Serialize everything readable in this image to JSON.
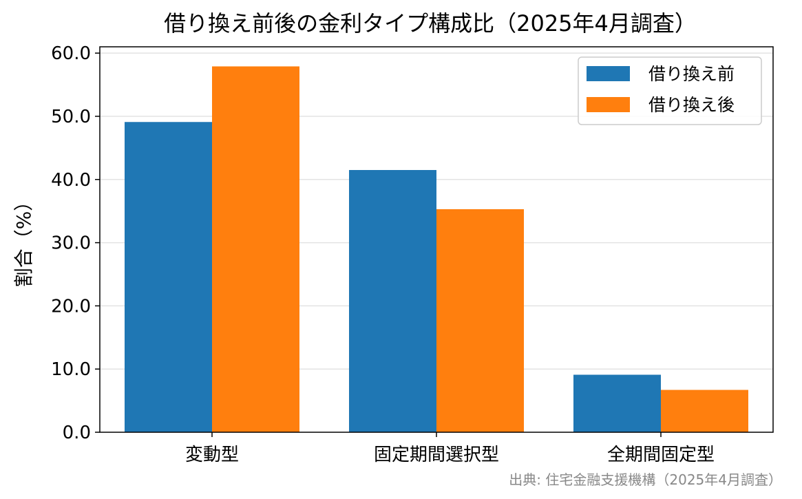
{
  "chart_data": {
    "type": "bar",
    "title": "借り換え前後の金利タイプ構成比（2025年4月調査）",
    "xlabel": "",
    "ylabel": "割合（%）",
    "categories": [
      "変動型",
      "固定期間選択型",
      "全期間固定型"
    ],
    "series": [
      {
        "name": "借り換え前",
        "color": "#1f77b4",
        "values": [
          49.1,
          41.5,
          9.1
        ]
      },
      {
        "name": "借り換え後",
        "color": "#ff7f0e",
        "values": [
          57.9,
          35.3,
          6.7
        ]
      }
    ],
    "ylim": [
      0,
      61
    ],
    "yticks": [
      0,
      10,
      20,
      30,
      40,
      50,
      60
    ],
    "ytick_labels": [
      "0.0",
      "10.0",
      "20.0",
      "30.0",
      "40.0",
      "50.0",
      "60.0"
    ],
    "grid": "horizontal",
    "legend_position": "top-right",
    "source": "出典: 住宅金融支援機構（2025年4月調査）"
  }
}
